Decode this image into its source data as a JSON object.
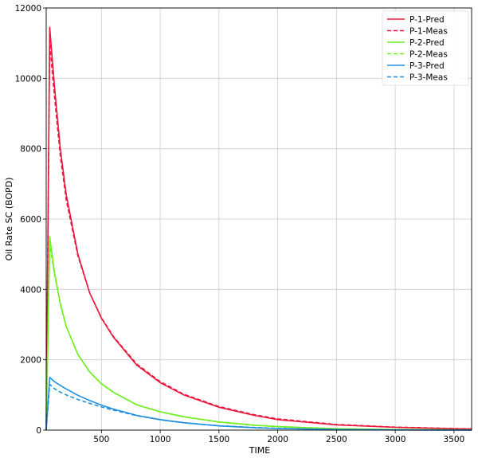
{
  "chart_data": {
    "type": "line",
    "title": "",
    "xlabel": "TIME",
    "ylabel": "Oil Rate SC (BOPD)",
    "xlim": [
      30,
      3650
    ],
    "ylim": [
      0,
      12000
    ],
    "x_ticks": [
      500,
      1000,
      1500,
      2000,
      2500,
      3000,
      3500
    ],
    "y_ticks": [
      0,
      2000,
      4000,
      6000,
      8000,
      10000,
      12000
    ],
    "grid": true,
    "legend_position": "top-right",
    "series": [
      {
        "name": "P-1-Pred",
        "color": "#e8193c",
        "dash": "solid",
        "x": [
          30,
          60,
          100,
          150,
          200,
          300,
          400,
          500,
          600,
          800,
          1000,
          1200,
          1500,
          1800,
          2000,
          2500,
          3000,
          3650
        ],
        "y": [
          0,
          11450,
          9800,
          8000,
          6700,
          5000,
          3900,
          3180,
          2650,
          1850,
          1350,
          1000,
          650,
          420,
          300,
          150,
          80,
          30
        ]
      },
      {
        "name": "P-1-Meas",
        "color": "#e8193c",
        "dash": "dashed",
        "x": [
          30,
          60,
          100,
          150,
          200,
          300,
          400,
          500,
          600,
          800,
          1000,
          1200,
          1500,
          1800,
          2000,
          2500,
          3000,
          3650
        ],
        "y": [
          0,
          11000,
          9500,
          7800,
          6550,
          4950,
          3900,
          3200,
          2670,
          1880,
          1380,
          1020,
          670,
          440,
          320,
          160,
          85,
          35
        ]
      },
      {
        "name": "P-2-Pred",
        "color": "#6df01e",
        "dash": "solid",
        "x": [
          30,
          60,
          100,
          150,
          200,
          300,
          400,
          500,
          600,
          800,
          1000,
          1200,
          1500,
          1800,
          2000,
          2500,
          3000,
          3650
        ],
        "y": [
          0,
          5500,
          4500,
          3600,
          2950,
          2150,
          1650,
          1320,
          1080,
          720,
          520,
          380,
          230,
          140,
          100,
          40,
          15,
          5
        ]
      },
      {
        "name": "P-2-Meas",
        "color": "#6df01e",
        "dash": "dashed",
        "x": [
          30,
          60,
          100,
          150,
          200,
          300,
          400,
          500,
          600,
          800,
          1000,
          1200,
          1500,
          1800,
          2000,
          2500,
          3000,
          3650
        ],
        "y": [
          0,
          5300,
          4450,
          3580,
          2940,
          2150,
          1650,
          1320,
          1080,
          720,
          520,
          380,
          230,
          140,
          100,
          40,
          15,
          5
        ]
      },
      {
        "name": "P-3-Pred",
        "color": "#1e8fe0",
        "dash": "solid",
        "x": [
          30,
          60,
          100,
          150,
          200,
          300,
          400,
          500,
          600,
          800,
          1000,
          1200,
          1500,
          1800,
          2000,
          2500,
          3000,
          3650
        ],
        "y": [
          0,
          1500,
          1380,
          1270,
          1170,
          990,
          840,
          710,
          600,
          420,
          300,
          210,
          120,
          70,
          45,
          15,
          5,
          2
        ]
      },
      {
        "name": "P-3-Meas",
        "color": "#1e8fe0",
        "dash": "dashed",
        "x": [
          30,
          60,
          100,
          150,
          200,
          300,
          400,
          500,
          600,
          800,
          1000,
          1200,
          1500,
          1800,
          2000,
          2500,
          3000,
          3650
        ],
        "y": [
          0,
          1300,
          1180,
          1080,
          1000,
          870,
          760,
          660,
          570,
          410,
          295,
          210,
          125,
          75,
          50,
          18,
          6,
          2
        ]
      }
    ]
  }
}
